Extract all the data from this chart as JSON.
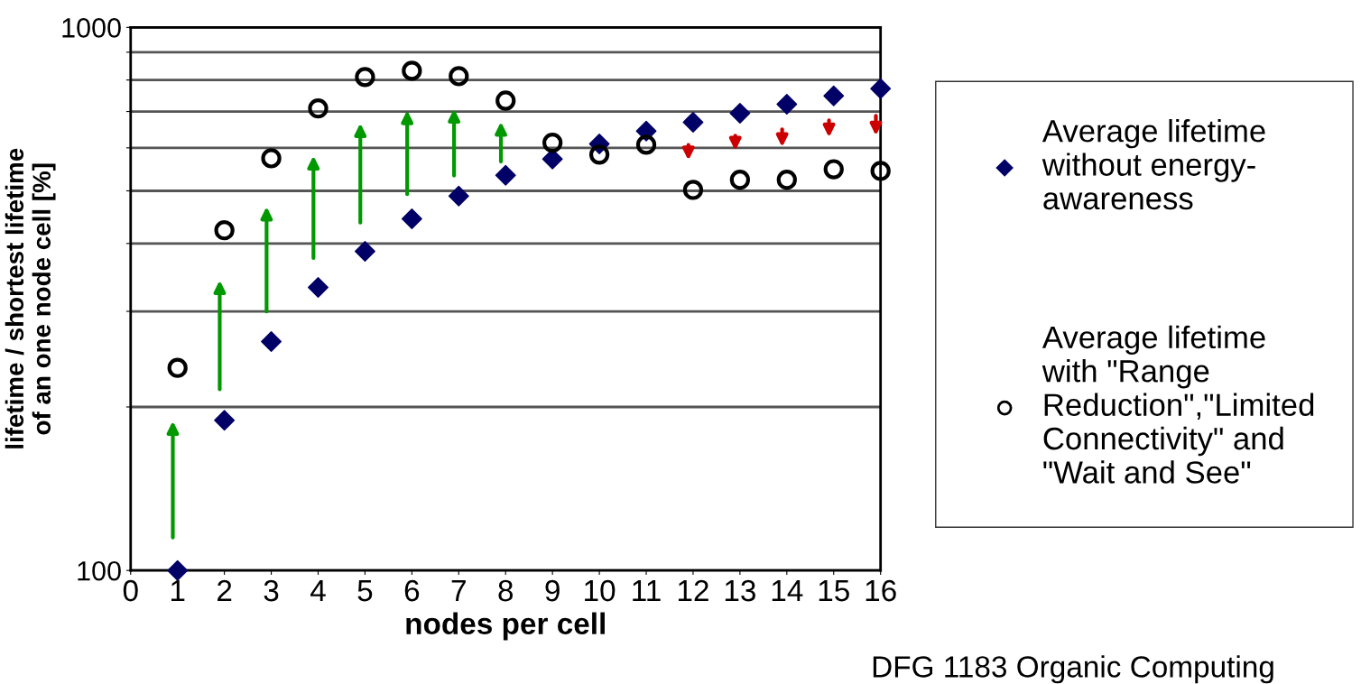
{
  "chart_data": {
    "type": "scatter",
    "x": [
      1,
      2,
      3,
      4,
      5,
      6,
      7,
      8,
      9,
      10,
      11,
      12,
      13,
      14,
      15,
      16
    ],
    "series": [
      {
        "name": "Average lifetime\nwithout energy-\nawareness",
        "color": "#000066",
        "marker": "diamond",
        "values": [
          100,
          189,
          264,
          332,
          387,
          444,
          489,
          534,
          572,
          610,
          644,
          669,
          695,
          722,
          748,
          771
        ]
      },
      {
        "name": "Average lifetime\nwith \"Range\nReduction\",\"Limited\nConnectivity\" and\n\"Wait and See\"",
        "color": "#000000",
        "marker": "circle",
        "values": [
          236,
          423,
          574,
          709,
          810,
          832,
          813,
          733,
          613,
          583,
          608,
          502,
          524,
          524,
          548,
          544
        ]
      }
    ],
    "xlabel": "nodes per cell",
    "ylabel": "lifetime / shortest lifetime\nof an one node cell [%]",
    "xlim": [
      0,
      16
    ],
    "xticks": [
      0,
      1,
      2,
      3,
      4,
      5,
      6,
      7,
      8,
      9,
      10,
      11,
      12,
      13,
      14,
      15,
      16
    ],
    "ylim": [
      100,
      1000
    ],
    "log": true,
    "yticks": [
      100,
      {
        "value": 200,
        "label": null
      },
      {
        "value": 300,
        "label": null
      },
      {
        "value": 400,
        "label": null
      },
      {
        "value": 500,
        "label": null
      },
      {
        "value": 600,
        "label": null
      },
      {
        "value": 700,
        "label": null
      },
      {
        "value": 800,
        "label": null
      },
      {
        "value": 900,
        "label": null
      },
      1000
    ],
    "grid": "y",
    "legend": "right",
    "annotations": [
      "DFG 1183 Organic Computing"
    ]
  }
}
